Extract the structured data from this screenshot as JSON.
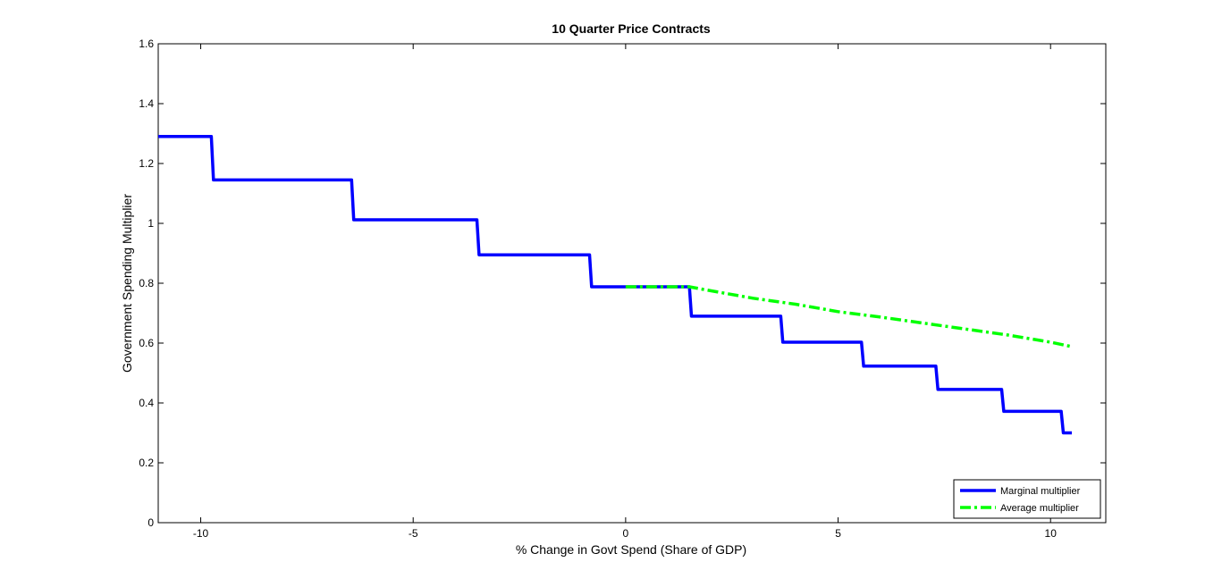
{
  "chart_data": {
    "type": "line",
    "title": "10 Quarter Price Contracts",
    "xlabel": "% Change in Govt Spend (Share of GDP)",
    "ylabel": "Government Spending Multiplier",
    "xlim": [
      -11,
      11.3
    ],
    "ylim": [
      0,
      1.6
    ],
    "xticks": [
      -10,
      -5,
      0,
      5,
      10
    ],
    "xtick_labels": [
      "-10",
      "-5",
      "0",
      "5",
      "10"
    ],
    "yticks": [
      0,
      0.2,
      0.4,
      0.6,
      0.8,
      1,
      1.2,
      1.4,
      1.6
    ],
    "ytick_labels": [
      "0",
      "0.2",
      "0.4",
      "0.6",
      "0.8",
      "1",
      "1.2",
      "1.4",
      "1.6"
    ],
    "grid": false,
    "legend_position": "bottom-right",
    "series": [
      {
        "name": "Marginal multiplier",
        "color": "#0000ff",
        "style": "solid",
        "x": [
          -11,
          -9.75,
          -9.7,
          -6.45,
          -6.4,
          -3.5,
          -3.45,
          -0.85,
          -0.8,
          1.5,
          1.55,
          3.65,
          3.7,
          5.55,
          5.6,
          7.3,
          7.35,
          8.85,
          8.9,
          10.25,
          10.3,
          10.5
        ],
        "y": [
          1.29,
          1.29,
          1.145,
          1.145,
          1.012,
          1.012,
          0.895,
          0.895,
          0.788,
          0.788,
          0.69,
          0.69,
          0.603,
          0.603,
          0.523,
          0.523,
          0.445,
          0.445,
          0.372,
          0.372,
          0.3,
          0.3
        ]
      },
      {
        "name": "Average multiplier",
        "color": "#00ff00",
        "style": "dash-dot",
        "x": [
          0,
          1,
          1.5,
          2,
          3,
          4,
          5,
          6,
          7,
          8,
          9,
          10,
          10.5
        ],
        "y": [
          0.788,
          0.788,
          0.788,
          0.775,
          0.75,
          0.73,
          0.705,
          0.687,
          0.667,
          0.647,
          0.627,
          0.603,
          0.588
        ]
      }
    ]
  }
}
